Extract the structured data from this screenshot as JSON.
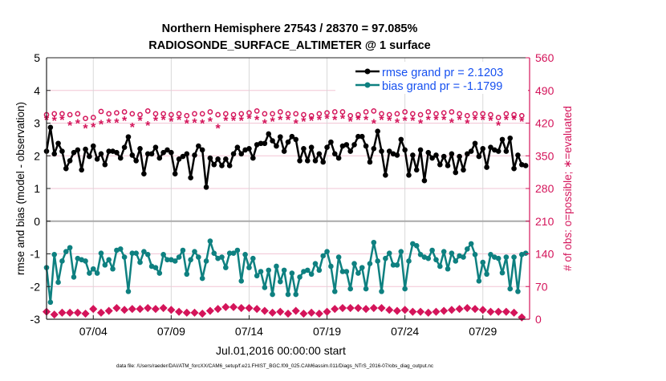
{
  "chart_data": {
    "type": "line",
    "title": [
      "Northern Hemisphere 27543 / 28370 = 97.085%",
      "RADIOSONDE_SURFACE_ALTIMETER @ 1 surface"
    ],
    "xlabel": "Jul.01,2016 00:00:00 start",
    "ylabel": "rmse and bias (model - observation)",
    "y2label": "# of obs: o=possible; ∗=evaluated",
    "footer": "data file: /Users/raeder/DAI/ATM_forcXX/CAM6_setup/f.e21.FHIST_BGC.f09_025.CAM6assim.011/Diags_NTrS_2016-07/obs_diag_output.nc",
    "xlim_days": [
      0,
      31
    ],
    "x_ticks": [
      {
        "day": 3,
        "label": "07/04"
      },
      {
        "day": 8,
        "label": "07/09"
      },
      {
        "day": 13,
        "label": "07/14"
      },
      {
        "day": 18,
        "label": "07/19"
      },
      {
        "day": 23,
        "label": "07/24"
      },
      {
        "day": 28,
        "label": "07/29"
      }
    ],
    "ylim": [
      -3,
      5
    ],
    "y_ticks": [
      "-3",
      "-2",
      "-1",
      "0",
      "1",
      "2",
      "3",
      "4",
      "5"
    ],
    "y2lim": [
      0,
      560
    ],
    "y2_ticks": [
      "0",
      "70",
      "140",
      "210",
      "280",
      "350",
      "420",
      "490",
      "560"
    ],
    "grid": true,
    "legend_placement": "top-right",
    "colors": {
      "rmse": "#000000",
      "bias": "#0e8080",
      "counts": "#d4145a",
      "legend_text": "#1650f0"
    },
    "step_days_series": 0.25,
    "step_days_counts": 0.5,
    "series": [
      {
        "name": "rmse grand pr = 2.1203",
        "values": [
          2.14,
          2.87,
          2.06,
          2.38,
          2.14,
          1.61,
          1.85,
          2.1,
          2.18,
          1.57,
          2.2,
          1.98,
          2.3,
          1.9,
          2.06,
          1.73,
          2.14,
          2.14,
          2.1,
          1.93,
          2.26,
          2.58,
          2.02,
          1.85,
          2.22,
          1.45,
          2.06,
          2.06,
          2.26,
          1.93,
          2.1,
          2.18,
          2.1,
          1.45,
          1.9,
          1.98,
          2.06,
          1.33,
          2.02,
          2.3,
          2.18,
          1.04,
          1.93,
          1.73,
          1.9,
          1.7,
          1.9,
          1.7,
          2.06,
          2.26,
          2.06,
          2.18,
          2.22,
          1.93,
          2.34,
          2.38,
          2.38,
          2.67,
          2.46,
          2.3,
          2.58,
          2.14,
          2.42,
          2.59,
          2.5,
          1.85,
          2.22,
          1.85,
          2.26,
          1.85,
          2.06,
          1.81,
          2.26,
          2.42,
          2.06,
          1.93,
          2.3,
          2.34,
          2.14,
          2.34,
          2.59,
          2.59,
          2.3,
          1.81,
          2.22,
          2.75,
          2.14,
          1.41,
          2.14,
          2.06,
          2.02,
          2.5,
          2.18,
          1.41,
          2.02,
          1.57,
          2.18,
          1.24,
          2.1,
          1.93,
          2.02,
          1.73,
          1.98,
          1.7,
          2.06,
          1.49,
          1.98,
          1.57,
          2.06,
          2.14,
          2.38,
          1.98,
          2.22,
          1.65,
          2.26,
          2.18,
          2.14,
          2.5,
          2.14,
          2.54,
          1.61,
          2.02,
          1.73,
          1.7
        ]
      },
      {
        "name": "bias grand pr = -1.1799",
        "values": [
          -1.42,
          -2.48,
          -1.02,
          -1.87,
          -1.22,
          -0.93,
          -0.81,
          -1.71,
          -1.14,
          -1.18,
          -1.22,
          -1.59,
          -1.46,
          -1.59,
          -0.98,
          -1.34,
          -1.18,
          -1.46,
          -0.89,
          -0.85,
          -1.1,
          -2.15,
          -0.98,
          -0.98,
          -1.26,
          -0.93,
          -1.02,
          -1.38,
          -1.42,
          -1.59,
          -1.02,
          -1.18,
          -1.18,
          -1.22,
          -1.1,
          -0.89,
          -1.62,
          -1.18,
          -0.93,
          -1.1,
          -1.75,
          -1.22,
          -0.61,
          -0.98,
          -1.14,
          -1.1,
          -1.42,
          -0.98,
          -0.98,
          -0.89,
          -1.83,
          -1.02,
          -1.42,
          -1.14,
          -1.67,
          -1.54,
          -2.03,
          -1.5,
          -2.24,
          -1.38,
          -1.85,
          -1.5,
          -2.24,
          -1.59,
          -2.24,
          -1.71,
          -1.54,
          -1.5,
          -1.62,
          -1.3,
          -1.5,
          -1.06,
          -0.93,
          -1.38,
          -2.15,
          -1.1,
          -1.54,
          -1.54,
          -2.07,
          -1.3,
          -1.59,
          -1.42,
          -2.07,
          -1.3,
          -0.65,
          -1.22,
          -2.15,
          -1.14,
          -0.98,
          -1.34,
          -1.34,
          -0.93,
          -2.07,
          -1.22,
          -0.69,
          -0.75,
          -1.02,
          -1.1,
          -1.14,
          -0.89,
          -1.18,
          -1.38,
          -0.93,
          -1.46,
          -0.98,
          -1.22,
          -1.06,
          -1.1,
          -0.85,
          -0.69,
          -1.02,
          -1.83,
          -1.26,
          -1.62,
          -1.02,
          -1.1,
          -1.14,
          -1.58,
          -1.1,
          -2.07,
          -1.1,
          -2.15,
          -1.02,
          -0.98
        ]
      }
    ],
    "count_series": [
      {
        "name": "possible",
        "marker": "o",
        "values": [
          438,
          440,
          440,
          438,
          440,
          430,
          432,
          445,
          440,
          442,
          444,
          440,
          438,
          446,
          440,
          440,
          438,
          440,
          436,
          440,
          440,
          444,
          438,
          440,
          438,
          440,
          442,
          446,
          440,
          440,
          444,
          440,
          440,
          438,
          436,
          440,
          442,
          444,
          444,
          436,
          438,
          444,
          446,
          440,
          438,
          440,
          444,
          440,
          438,
          444,
          440,
          442,
          444,
          440,
          436,
          440,
          440,
          438,
          432,
          440,
          438,
          436
        ]
      },
      {
        "name": "evaluated",
        "marker": "*",
        "values": [
          428,
          426,
          428,
          416,
          420,
          410,
          412,
          418,
          422,
          422,
          426,
          412,
          426,
          416,
          426,
          428,
          424,
          428,
          420,
          422,
          420,
          424,
          410,
          426,
          426,
          426,
          430,
          428,
          420,
          424,
          428,
          428,
          420,
          424,
          426,
          428,
          430,
          428,
          430,
          424,
          428,
          428,
          420,
          428,
          426,
          422,
          426,
          426,
          420,
          428,
          428,
          428,
          422,
          428,
          420,
          428,
          428,
          426,
          416,
          428,
          428,
          424
        ]
      },
      {
        "name": "lower",
        "marker": "filled",
        "values": [
          16,
          10,
          14,
          14,
          14,
          12,
          22,
          14,
          18,
          24,
          20,
          22,
          22,
          24,
          22,
          24,
          20,
          16,
          14,
          14,
          12,
          18,
          22,
          26,
          26,
          24,
          24,
          22,
          18,
          14,
          16,
          12,
          18,
          12,
          14,
          12,
          16,
          22,
          24,
          24,
          24,
          22,
          24,
          24,
          20,
          18,
          20,
          16,
          16,
          14,
          16,
          18,
          20,
          22,
          24,
          22,
          20,
          16,
          16,
          16,
          14,
          4
        ]
      }
    ]
  }
}
